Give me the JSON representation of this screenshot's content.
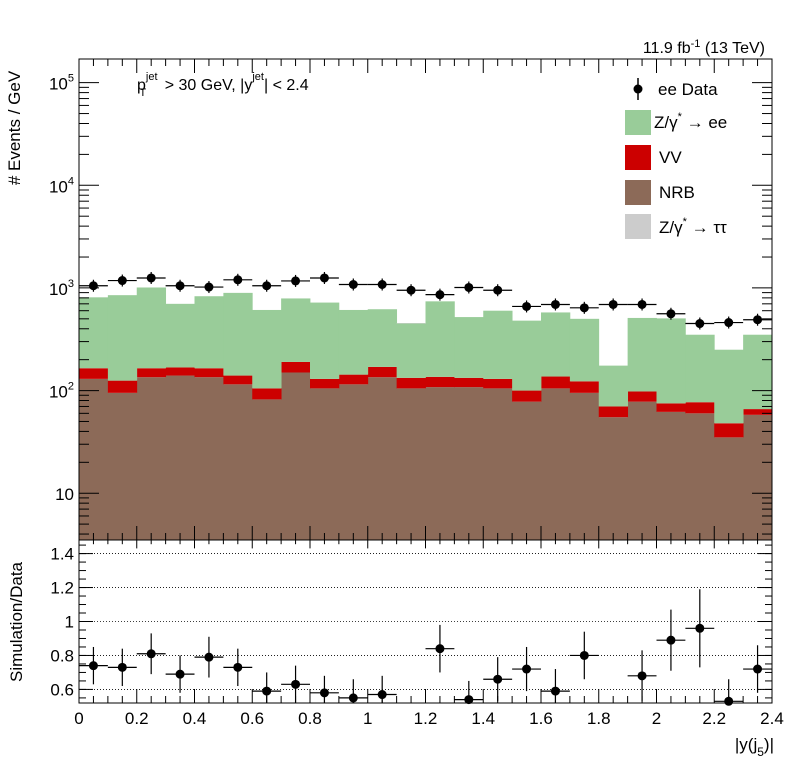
{
  "header": {
    "lumi_value": "11.9 fb",
    "lumi_exp": "-1",
    "lumi_tail": " (13 TeV)"
  },
  "cuts": {
    "pt_p": "p",
    "pt_sup": "jet",
    "pt_sub": "T",
    "pt_rest": " > 30 GeV,  |y",
    "y_sup": "jet",
    "y_rest": "| < 2.4"
  },
  "legend": {
    "data": "ee Data",
    "dy_ee_pre": "Z/γ",
    "dy_ee_star": "*",
    "dy_ee_post": " → ee",
    "vv": "VV",
    "nrb": "NRB",
    "dy_tt_pre": "Z/γ",
    "dy_tt_star": "*",
    "dy_tt_post": " → ττ"
  },
  "axes": {
    "top_ylabel": "# Events / GeV",
    "ratio_ylabel": "Simulation/Data",
    "xlabel_pre": "|y(j",
    "xlabel_sub": "5",
    "xlabel_post": ")|"
  },
  "colors": {
    "dy_ee": "#99cc99",
    "vv": "#cc0000",
    "nrb": "#8c6a58",
    "dy_tt": "#cccccc",
    "data": "#000000"
  },
  "chart_data": [
    {
      "type": "bar",
      "subtype": "stacked-histogram-with-data-points",
      "xlim": [
        0,
        2.4
      ],
      "ylim": [
        3.5,
        170000
      ],
      "yscale": "log",
      "bin_edges": [
        0,
        0.1,
        0.2,
        0.3,
        0.4,
        0.5,
        0.6,
        0.7,
        0.8,
        0.9,
        1.0,
        1.1,
        1.2,
        1.3,
        1.4,
        1.5,
        1.6,
        1.7,
        1.8,
        1.9,
        2.0,
        2.1,
        2.2,
        2.3,
        2.4
      ],
      "y_tick_labels": [
        "10",
        "10^2",
        "10^3",
        "10^4",
        "10^5"
      ],
      "series": [
        {
          "name": "NRB",
          "color": "#8c6a58",
          "values": [
            130,
            95,
            135,
            140,
            135,
            115,
            82,
            150,
            105,
            115,
            135,
            105,
            108,
            108,
            105,
            78,
            105,
            95,
            55,
            78,
            62,
            60,
            35,
            58
          ]
        },
        {
          "name": "VV",
          "color": "#cc0000",
          "values": [
            35,
            30,
            30,
            28,
            30,
            25,
            23,
            40,
            25,
            28,
            35,
            28,
            28,
            25,
            25,
            22,
            32,
            28,
            15,
            20,
            13,
            17,
            13,
            8
          ]
        },
        {
          "name": "Z/γ* → ee",
          "color": "#99cc99",
          "values": [
            645,
            725,
            845,
            532,
            665,
            755,
            505,
            600,
            590,
            467,
            450,
            317,
            604,
            387,
            470,
            380,
            440,
            377,
            105,
            412,
            430,
            273,
            202,
            284
          ]
        },
        {
          "name": "Z/γ* → ττ",
          "color": "#cccccc",
          "values": [
            0,
            0,
            0,
            0,
            0,
            0,
            0,
            0,
            0,
            0,
            0,
            5,
            0,
            0,
            0,
            0,
            0,
            0,
            0,
            0,
            0,
            0,
            0,
            0
          ]
        }
      ],
      "data_points": {
        "name": "ee Data",
        "values": [
          1050,
          1180,
          1250,
          1050,
          1020,
          1200,
          1050,
          1170,
          1250,
          1080,
          1080,
          950,
          860,
          1010,
          950,
          660,
          690,
          640,
          690,
          690,
          560,
          450,
          460,
          490
        ]
      }
    },
    {
      "type": "scatter",
      "ylabel": "Simulation/Data",
      "xlabel": "|y(j5)|",
      "xlim": [
        0,
        2.4
      ],
      "ylim": [
        0.52,
        1.48
      ],
      "y_ticks": [
        "0.6",
        "0.8",
        "1",
        "1.2",
        "1.4"
      ],
      "x_ticks": [
        "0",
        "0.2",
        "0.4",
        "0.6",
        "0.8",
        "1",
        "1.2",
        "1.4",
        "1.6",
        "1.8",
        "2",
        "2.2",
        "2.4"
      ],
      "grid": "horizontal-dotted",
      "x": [
        0.05,
        0.15,
        0.25,
        0.35,
        0.45,
        0.55,
        0.65,
        0.75,
        0.85,
        0.95,
        1.05,
        1.25,
        1.35,
        1.45,
        1.55,
        1.65,
        1.75,
        1.95,
        2.05,
        2.15,
        2.25,
        2.35
      ],
      "values": [
        0.74,
        0.73,
        0.81,
        0.69,
        0.79,
        0.73,
        0.59,
        0.63,
        0.58,
        0.55,
        0.57,
        0.84,
        0.54,
        0.66,
        0.72,
        0.59,
        0.8,
        0.68,
        0.89,
        0.96,
        0.53,
        0.72
      ],
      "errors": [
        0.11,
        0.11,
        0.12,
        0.11,
        0.12,
        0.11,
        0.11,
        0.11,
        0.1,
        0.11,
        0.11,
        0.14,
        0.11,
        0.13,
        0.13,
        0.13,
        0.14,
        0.15,
        0.18,
        0.23,
        0.13,
        0.14
      ]
    }
  ]
}
